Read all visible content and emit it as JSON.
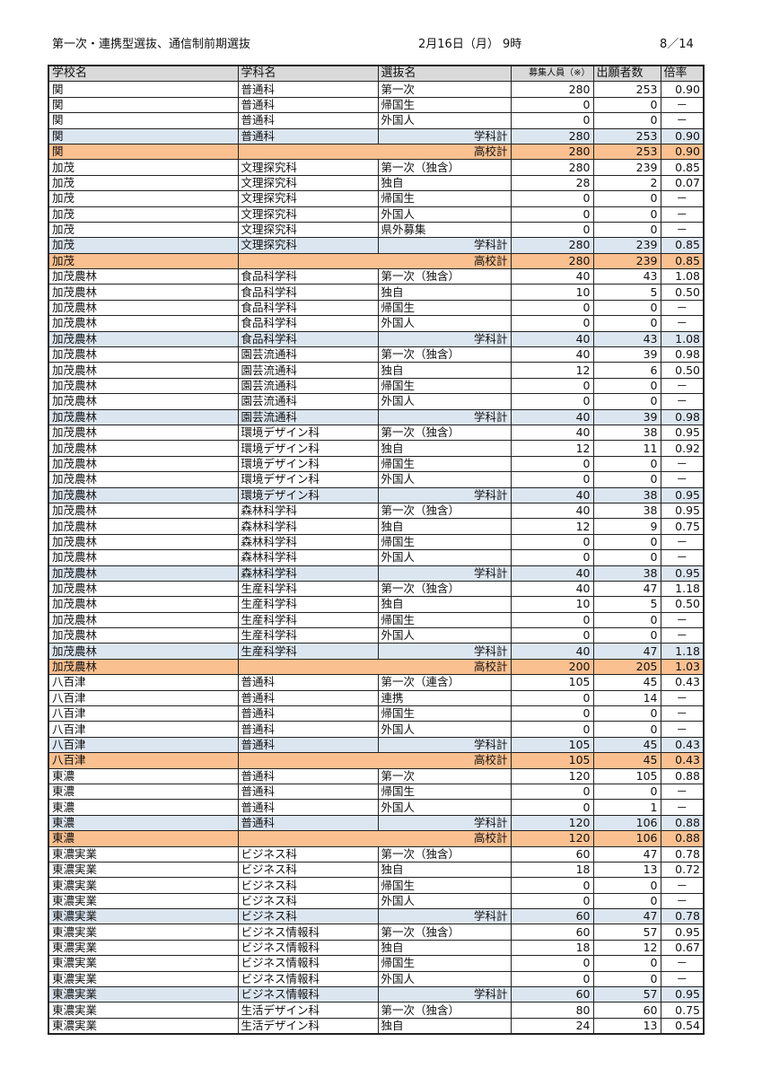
{
  "header": {
    "title": "第一次・連携型選抜、通信制前期選抜",
    "date": "2月16日（月） 9時",
    "page": "8／14"
  },
  "columns": [
    "学校名",
    "学科名",
    "選抜名",
    "募集人員（※）",
    "出願者数",
    "倍率"
  ],
  "colors": {
    "header": "#d9d9d9",
    "dept_total": "#dce6f1",
    "school_total": "#fac090"
  },
  "rows": [
    {
      "t": "n",
      "c": [
        "関",
        "普通科",
        "第一次",
        "280",
        "253",
        "0.90"
      ]
    },
    {
      "t": "n",
      "c": [
        "関",
        "普通科",
        "帰国生",
        "0",
        "0",
        "－"
      ]
    },
    {
      "t": "n",
      "c": [
        "関",
        "普通科",
        "外国人",
        "0",
        "0",
        "－"
      ]
    },
    {
      "t": "d",
      "c": [
        "関",
        "普通科",
        "学科計",
        "280",
        "253",
        "0.90"
      ]
    },
    {
      "t": "s",
      "c": [
        "関",
        "",
        "高校計",
        "280",
        "253",
        "0.90"
      ]
    },
    {
      "t": "n",
      "c": [
        "加茂",
        "文理探究科",
        "第一次（独含）",
        "280",
        "239",
        "0.85"
      ]
    },
    {
      "t": "n",
      "c": [
        "加茂",
        "文理探究科",
        "独自",
        "28",
        "2",
        "0.07"
      ]
    },
    {
      "t": "n",
      "c": [
        "加茂",
        "文理探究科",
        "帰国生",
        "0",
        "0",
        "－"
      ]
    },
    {
      "t": "n",
      "c": [
        "加茂",
        "文理探究科",
        "外国人",
        "0",
        "0",
        "－"
      ]
    },
    {
      "t": "n",
      "c": [
        "加茂",
        "文理探究科",
        "県外募集",
        "0",
        "0",
        "－"
      ]
    },
    {
      "t": "d",
      "c": [
        "加茂",
        "文理探究科",
        "学科計",
        "280",
        "239",
        "0.85"
      ]
    },
    {
      "t": "s",
      "c": [
        "加茂",
        "",
        "高校計",
        "280",
        "239",
        "0.85"
      ]
    },
    {
      "t": "n",
      "c": [
        "加茂農林",
        "食品科学科",
        "第一次（独含）",
        "40",
        "43",
        "1.08"
      ]
    },
    {
      "t": "n",
      "c": [
        "加茂農林",
        "食品科学科",
        "独自",
        "10",
        "5",
        "0.50"
      ]
    },
    {
      "t": "n",
      "c": [
        "加茂農林",
        "食品科学科",
        "帰国生",
        "0",
        "0",
        "－"
      ]
    },
    {
      "t": "n",
      "c": [
        "加茂農林",
        "食品科学科",
        "外国人",
        "0",
        "0",
        "－"
      ]
    },
    {
      "t": "d",
      "c": [
        "加茂農林",
        "食品科学科",
        "学科計",
        "40",
        "43",
        "1.08"
      ]
    },
    {
      "t": "n",
      "c": [
        "加茂農林",
        "園芸流通科",
        "第一次（独含）",
        "40",
        "39",
        "0.98"
      ]
    },
    {
      "t": "n",
      "c": [
        "加茂農林",
        "園芸流通科",
        "独自",
        "12",
        "6",
        "0.50"
      ]
    },
    {
      "t": "n",
      "c": [
        "加茂農林",
        "園芸流通科",
        "帰国生",
        "0",
        "0",
        "－"
      ]
    },
    {
      "t": "n",
      "c": [
        "加茂農林",
        "園芸流通科",
        "外国人",
        "0",
        "0",
        "－"
      ]
    },
    {
      "t": "d",
      "c": [
        "加茂農林",
        "園芸流通科",
        "学科計",
        "40",
        "39",
        "0.98"
      ]
    },
    {
      "t": "n",
      "c": [
        "加茂農林",
        "環境デザイン科",
        "第一次（独含）",
        "40",
        "38",
        "0.95"
      ]
    },
    {
      "t": "n",
      "c": [
        "加茂農林",
        "環境デザイン科",
        "独自",
        "12",
        "11",
        "0.92"
      ]
    },
    {
      "t": "n",
      "c": [
        "加茂農林",
        "環境デザイン科",
        "帰国生",
        "0",
        "0",
        "－"
      ]
    },
    {
      "t": "n",
      "c": [
        "加茂農林",
        "環境デザイン科",
        "外国人",
        "0",
        "0",
        "－"
      ]
    },
    {
      "t": "d",
      "c": [
        "加茂農林",
        "環境デザイン科",
        "学科計",
        "40",
        "38",
        "0.95"
      ]
    },
    {
      "t": "n",
      "c": [
        "加茂農林",
        "森林科学科",
        "第一次（独含）",
        "40",
        "38",
        "0.95"
      ]
    },
    {
      "t": "n",
      "c": [
        "加茂農林",
        "森林科学科",
        "独自",
        "12",
        "9",
        "0.75"
      ]
    },
    {
      "t": "n",
      "c": [
        "加茂農林",
        "森林科学科",
        "帰国生",
        "0",
        "0",
        "－"
      ]
    },
    {
      "t": "n",
      "c": [
        "加茂農林",
        "森林科学科",
        "外国人",
        "0",
        "0",
        "－"
      ]
    },
    {
      "t": "d",
      "c": [
        "加茂農林",
        "森林科学科",
        "学科計",
        "40",
        "38",
        "0.95"
      ]
    },
    {
      "t": "n",
      "c": [
        "加茂農林",
        "生産科学科",
        "第一次（独含）",
        "40",
        "47",
        "1.18"
      ]
    },
    {
      "t": "n",
      "c": [
        "加茂農林",
        "生産科学科",
        "独自",
        "10",
        "5",
        "0.50"
      ]
    },
    {
      "t": "n",
      "c": [
        "加茂農林",
        "生産科学科",
        "帰国生",
        "0",
        "0",
        "－"
      ]
    },
    {
      "t": "n",
      "c": [
        "加茂農林",
        "生産科学科",
        "外国人",
        "0",
        "0",
        "－"
      ]
    },
    {
      "t": "d",
      "c": [
        "加茂農林",
        "生産科学科",
        "学科計",
        "40",
        "47",
        "1.18"
      ]
    },
    {
      "t": "s",
      "c": [
        "加茂農林",
        "",
        "高校計",
        "200",
        "205",
        "1.03"
      ]
    },
    {
      "t": "n",
      "c": [
        "八百津",
        "普通科",
        "第一次（連含）",
        "105",
        "45",
        "0.43"
      ]
    },
    {
      "t": "n",
      "c": [
        "八百津",
        "普通科",
        "連携",
        "0",
        "14",
        "－"
      ]
    },
    {
      "t": "n",
      "c": [
        "八百津",
        "普通科",
        "帰国生",
        "0",
        "0",
        "－"
      ]
    },
    {
      "t": "n",
      "c": [
        "八百津",
        "普通科",
        "外国人",
        "0",
        "0",
        "－"
      ]
    },
    {
      "t": "d",
      "c": [
        "八百津",
        "普通科",
        "学科計",
        "105",
        "45",
        "0.43"
      ]
    },
    {
      "t": "s",
      "c": [
        "八百津",
        "",
        "高校計",
        "105",
        "45",
        "0.43"
      ]
    },
    {
      "t": "n",
      "c": [
        "東濃",
        "普通科",
        "第一次",
        "120",
        "105",
        "0.88"
      ]
    },
    {
      "t": "n",
      "c": [
        "東濃",
        "普通科",
        "帰国生",
        "0",
        "0",
        "－"
      ]
    },
    {
      "t": "n",
      "c": [
        "東濃",
        "普通科",
        "外国人",
        "0",
        "1",
        "－"
      ]
    },
    {
      "t": "d",
      "c": [
        "東濃",
        "普通科",
        "学科計",
        "120",
        "106",
        "0.88"
      ]
    },
    {
      "t": "s",
      "c": [
        "東濃",
        "",
        "高校計",
        "120",
        "106",
        "0.88"
      ]
    },
    {
      "t": "n",
      "c": [
        "東濃実業",
        "ビジネス科",
        "第一次（独含）",
        "60",
        "47",
        "0.78"
      ]
    },
    {
      "t": "n",
      "c": [
        "東濃実業",
        "ビジネス科",
        "独自",
        "18",
        "13",
        "0.72"
      ]
    },
    {
      "t": "n",
      "c": [
        "東濃実業",
        "ビジネス科",
        "帰国生",
        "0",
        "0",
        "－"
      ]
    },
    {
      "t": "n",
      "c": [
        "東濃実業",
        "ビジネス科",
        "外国人",
        "0",
        "0",
        "－"
      ]
    },
    {
      "t": "d",
      "c": [
        "東濃実業",
        "ビジネス科",
        "学科計",
        "60",
        "47",
        "0.78"
      ]
    },
    {
      "t": "n",
      "c": [
        "東濃実業",
        "ビジネス情報科",
        "第一次（独含）",
        "60",
        "57",
        "0.95"
      ]
    },
    {
      "t": "n",
      "c": [
        "東濃実業",
        "ビジネス情報科",
        "独自",
        "18",
        "12",
        "0.67"
      ]
    },
    {
      "t": "n",
      "c": [
        "東濃実業",
        "ビジネス情報科",
        "帰国生",
        "0",
        "0",
        "－"
      ]
    },
    {
      "t": "n",
      "c": [
        "東濃実業",
        "ビジネス情報科",
        "外国人",
        "0",
        "0",
        "－"
      ]
    },
    {
      "t": "d",
      "c": [
        "東濃実業",
        "ビジネス情報科",
        "学科計",
        "60",
        "57",
        "0.95"
      ]
    },
    {
      "t": "n",
      "c": [
        "東濃実業",
        "生活デザイン科",
        "第一次（独含）",
        "80",
        "60",
        "0.75"
      ]
    },
    {
      "t": "n",
      "c": [
        "東濃実業",
        "生活デザイン科",
        "独自",
        "24",
        "13",
        "0.54"
      ]
    }
  ]
}
